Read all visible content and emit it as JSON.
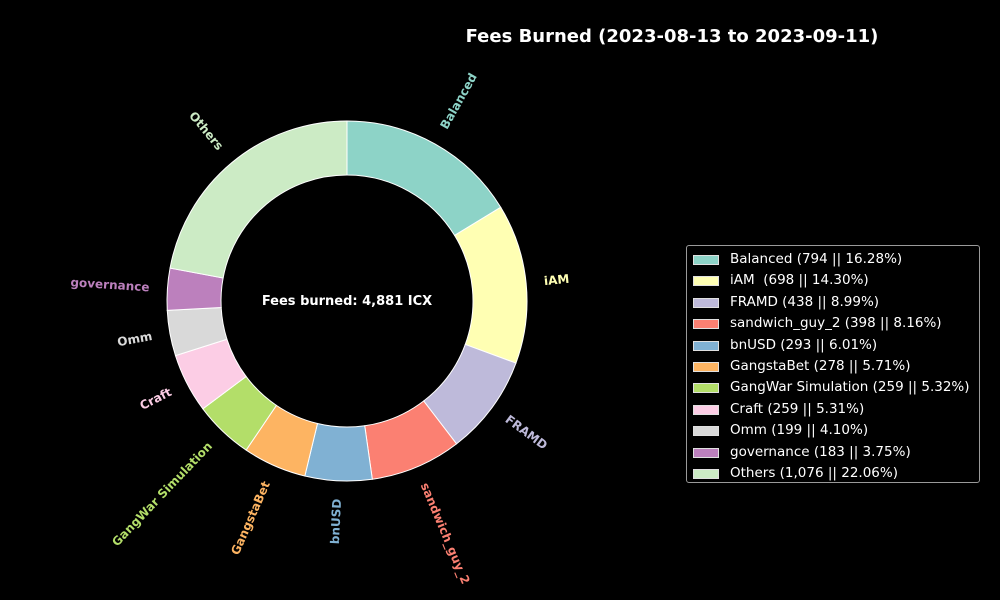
{
  "chart_data": {
    "type": "pie",
    "variant": "donut",
    "title": "Fees Burned (2023-08-13 to 2023-09-11)",
    "center_label": "Fees burned: 4,881 ICX",
    "legend_position": "right",
    "slices": [
      {
        "label": "Balanced",
        "value": 794,
        "percent": 16.28,
        "color": "#8dd3c7",
        "legend_text": "Balanced (794 || 16.28%)"
      },
      {
        "label": "iAM",
        "value": 698,
        "percent": 14.3,
        "color": "#ffffb3",
        "legend_text": "iAM  (698 || 14.30%)"
      },
      {
        "label": "FRAMD",
        "value": 438,
        "percent": 8.99,
        "color": "#bebada",
        "legend_text": "FRAMD (438 || 8.99%)"
      },
      {
        "label": "sandwich_guy_2",
        "value": 398,
        "percent": 8.16,
        "color": "#fb8072",
        "legend_text": "sandwich_guy_2 (398 || 8.16%)"
      },
      {
        "label": "bnUSD",
        "value": 293,
        "percent": 6.01,
        "color": "#80b1d3",
        "legend_text": "bnUSD (293 || 6.01%)"
      },
      {
        "label": "GangstaBet",
        "value": 278,
        "percent": 5.71,
        "color": "#fdb462",
        "legend_text": "GangstaBet (278 || 5.71%)"
      },
      {
        "label": "GangWar Simulation",
        "value": 259,
        "percent": 5.32,
        "color": "#b3de69",
        "legend_text": "GangWar Simulation (259 || 5.32%)"
      },
      {
        "label": "Craft",
        "value": 259,
        "percent": 5.31,
        "color": "#fccde5",
        "legend_text": "Craft (259 || 5.31%)"
      },
      {
        "label": "Omm",
        "value": 199,
        "percent": 4.1,
        "color": "#d9d9d9",
        "legend_text": "Omm (199 || 4.10%)"
      },
      {
        "label": "governance",
        "value": 183,
        "percent": 3.75,
        "color": "#bc80bd",
        "legend_text": "governance (183 || 3.75%)"
      },
      {
        "label": "Others",
        "value": 1076,
        "percent": 22.06,
        "color": "#ccebc5",
        "legend_text": "Others (1,076 || 22.06%)"
      }
    ]
  }
}
